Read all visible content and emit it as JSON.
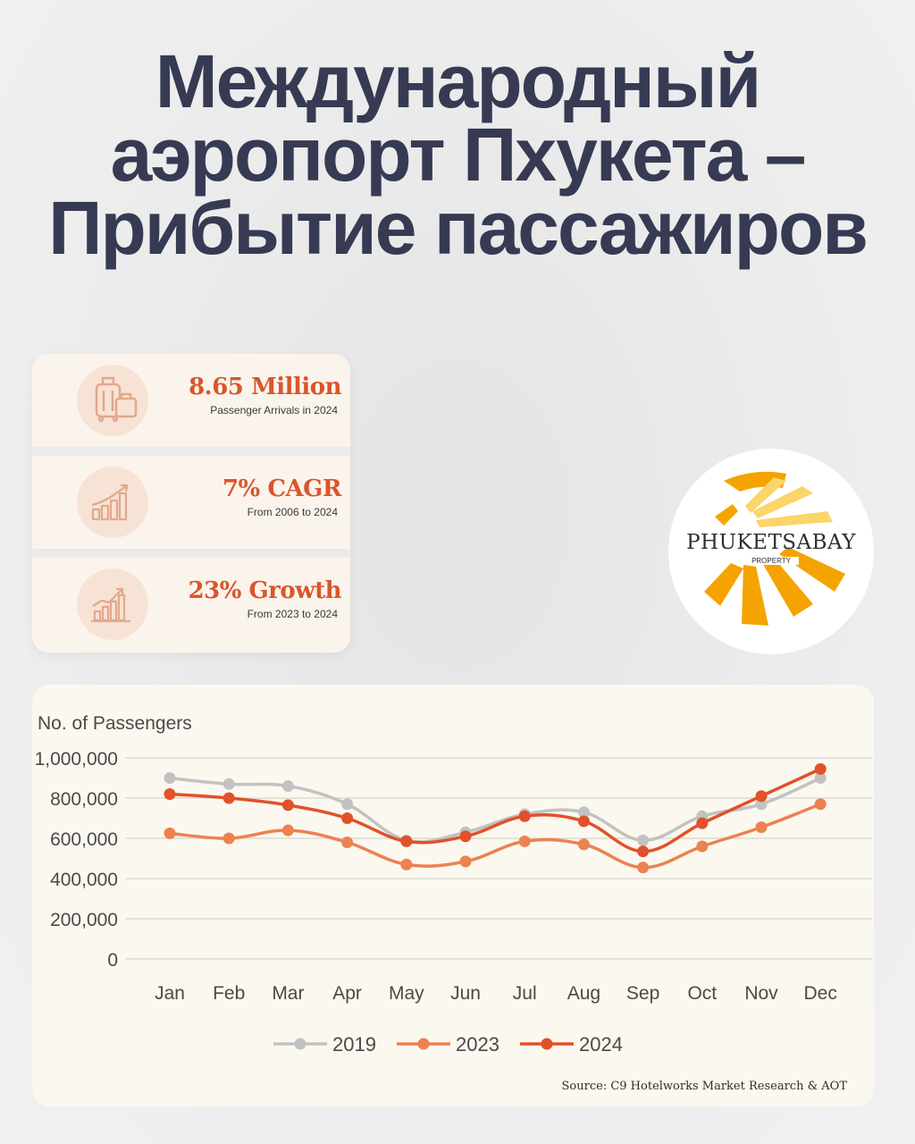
{
  "title": {
    "line1": "Международный",
    "line2": "аэропорт Пхукета –",
    "line3": "Прибытие пассажиров"
  },
  "stats": [
    {
      "icon": "luggage-icon",
      "value": "8.65 Million",
      "label": "Passenger Arrivals in 2024"
    },
    {
      "icon": "bar-growth-icon",
      "value": "7% CAGR",
      "label": "From 2006 to 2024"
    },
    {
      "icon": "trend-growth-icon",
      "value": "23% Growth",
      "label": "From 2023 to 2024"
    }
  ],
  "logo": {
    "name": "PHUKETSABAY",
    "sub": "PROPERTY",
    "colors": {
      "sun": "#f5a300",
      "sun_light": "#fbd46a"
    }
  },
  "chart_data": {
    "type": "line",
    "ylabel": "No. of Passengers",
    "ylim": [
      0,
      1000000
    ],
    "yticks": [
      0,
      200000,
      400000,
      600000,
      800000,
      1000000
    ],
    "ytick_labels": [
      "0",
      "200,000",
      "400,000",
      "600,000",
      "800,000",
      "1,000,000"
    ],
    "categories": [
      "Jan",
      "Feb",
      "Mar",
      "Apr",
      "May",
      "Jun",
      "Jul",
      "Aug",
      "Sep",
      "Oct",
      "Nov",
      "Dec"
    ],
    "series": [
      {
        "name": "2019",
        "color": "#c2c2c2",
        "values": [
          900000,
          870000,
          860000,
          770000,
          590000,
          630000,
          720000,
          730000,
          590000,
          710000,
          770000,
          900000
        ]
      },
      {
        "name": "2023",
        "color": "#ec8250",
        "values": [
          625000,
          600000,
          640000,
          580000,
          470000,
          485000,
          585000,
          570000,
          455000,
          560000,
          655000,
          770000
        ]
      },
      {
        "name": "2024",
        "color": "#e1512a",
        "values": [
          820000,
          800000,
          765000,
          700000,
          585000,
          610000,
          710000,
          685000,
          535000,
          675000,
          810000,
          945000
        ]
      }
    ],
    "grid": true,
    "legend": "bottom-center",
    "source": "Source: C9 Hotelworks Market Research & AOT"
  }
}
